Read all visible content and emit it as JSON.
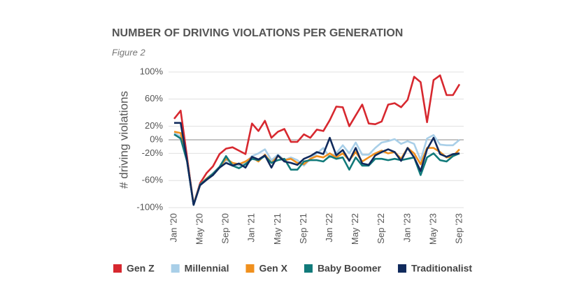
{
  "chart_data": {
    "type": "line",
    "title": "NUMBER OF DRIVING VIOLATIONS PER GENERATION",
    "subtitle": "Figure 2",
    "y_label": "# driving violations",
    "categories": [
      "Jan '20",
      null,
      null,
      null,
      "May '20",
      null,
      null,
      null,
      "Sep '20",
      null,
      null,
      null,
      "Jan '21",
      null,
      null,
      null,
      "May '21",
      null,
      null,
      null,
      "Sep '21",
      null,
      null,
      null,
      "Jan '22",
      null,
      null,
      null,
      "May '22",
      null,
      null,
      null,
      "Sep '22",
      null,
      null,
      null,
      "Jan '23",
      null,
      null,
      null,
      "May '23",
      null,
      null,
      null,
      "Sep '23"
    ],
    "ylim": [
      -100,
      100
    ],
    "yticks": [
      {
        "value": 100,
        "label": "100%"
      },
      {
        "value": 60,
        "label": "60%"
      },
      {
        "value": 20,
        "label": "20%"
      },
      {
        "value": 0,
        "label": "0%"
      },
      {
        "value": -20,
        "label": "-20%"
      },
      {
        "value": -60,
        "label": "-60%"
      },
      {
        "value": -100,
        "label": "-100%"
      }
    ],
    "grid": true,
    "legend": "bottom",
    "series": [
      {
        "name": "Gen Z",
        "color": "#d7282f",
        "values": [
          31,
          43,
          -26,
          -95,
          -64,
          -49,
          -39,
          -21,
          -13,
          -11,
          -16,
          -21,
          24,
          13,
          28,
          3,
          12,
          16,
          -3,
          -3,
          8,
          3,
          15,
          13,
          29,
          49,
          48,
          20,
          36,
          52,
          24,
          23,
          27,
          52,
          54,
          48,
          59,
          93,
          85,
          26,
          88,
          95,
          66,
          66,
          82
        ]
      },
      {
        "name": "Millennial",
        "color": "#a9cfe8",
        "values": [
          10,
          5,
          -30,
          -95,
          -66,
          -57,
          -49,
          -40,
          -30,
          -35,
          -38,
          -33,
          -24,
          -20,
          -14,
          -30,
          -22,
          -30,
          -26,
          -30,
          -38,
          -28,
          -20,
          -12,
          -26,
          -20,
          -8,
          -20,
          -4,
          -22,
          -22,
          -12,
          -4,
          -2,
          1,
          -6,
          -2,
          -6,
          -30,
          2,
          7,
          -7,
          -8,
          -8,
          0
        ]
      },
      {
        "name": "Gen X",
        "color": "#f0901e",
        "values": [
          12,
          10,
          -30,
          -95,
          -66,
          -57,
          -50,
          -40,
          -28,
          -34,
          -36,
          -32,
          -26,
          -32,
          -22,
          -34,
          -24,
          -30,
          -28,
          -34,
          -36,
          -28,
          -24,
          -26,
          -20,
          -26,
          -20,
          -30,
          -18,
          -32,
          -26,
          -20,
          -16,
          -20,
          -18,
          -28,
          -12,
          -20,
          -36,
          -12,
          -12,
          -18,
          -26,
          -24,
          -14
        ]
      },
      {
        "name": "Baby Boomer",
        "color": "#117a7a",
        "values": [
          8,
          2,
          -32,
          -96,
          -66,
          -58,
          -50,
          -40,
          -24,
          -38,
          -42,
          -36,
          -28,
          -30,
          -24,
          -34,
          -30,
          -28,
          -44,
          -44,
          -32,
          -30,
          -30,
          -32,
          -24,
          -28,
          -26,
          -44,
          -26,
          -38,
          -38,
          -28,
          -28,
          -30,
          -28,
          -30,
          -28,
          -26,
          -52,
          -26,
          -20,
          -30,
          -32,
          -24,
          -20
        ]
      },
      {
        "name": "Traditionalist",
        "color": "#102a5c",
        "values": [
          25,
          25,
          -31,
          -96,
          -67,
          -59,
          -52,
          -41,
          -34,
          -38,
          -35,
          -41,
          -25,
          -29,
          -23,
          -41,
          -23,
          -32,
          -34,
          -37,
          -28,
          -24,
          -18,
          -21,
          3,
          -23,
          -15,
          -31,
          -12,
          -35,
          -37,
          -23,
          -18,
          -14,
          -18,
          -31,
          -12,
          -26,
          -46,
          -14,
          3,
          -21,
          -25,
          -21,
          -20
        ]
      }
    ]
  }
}
